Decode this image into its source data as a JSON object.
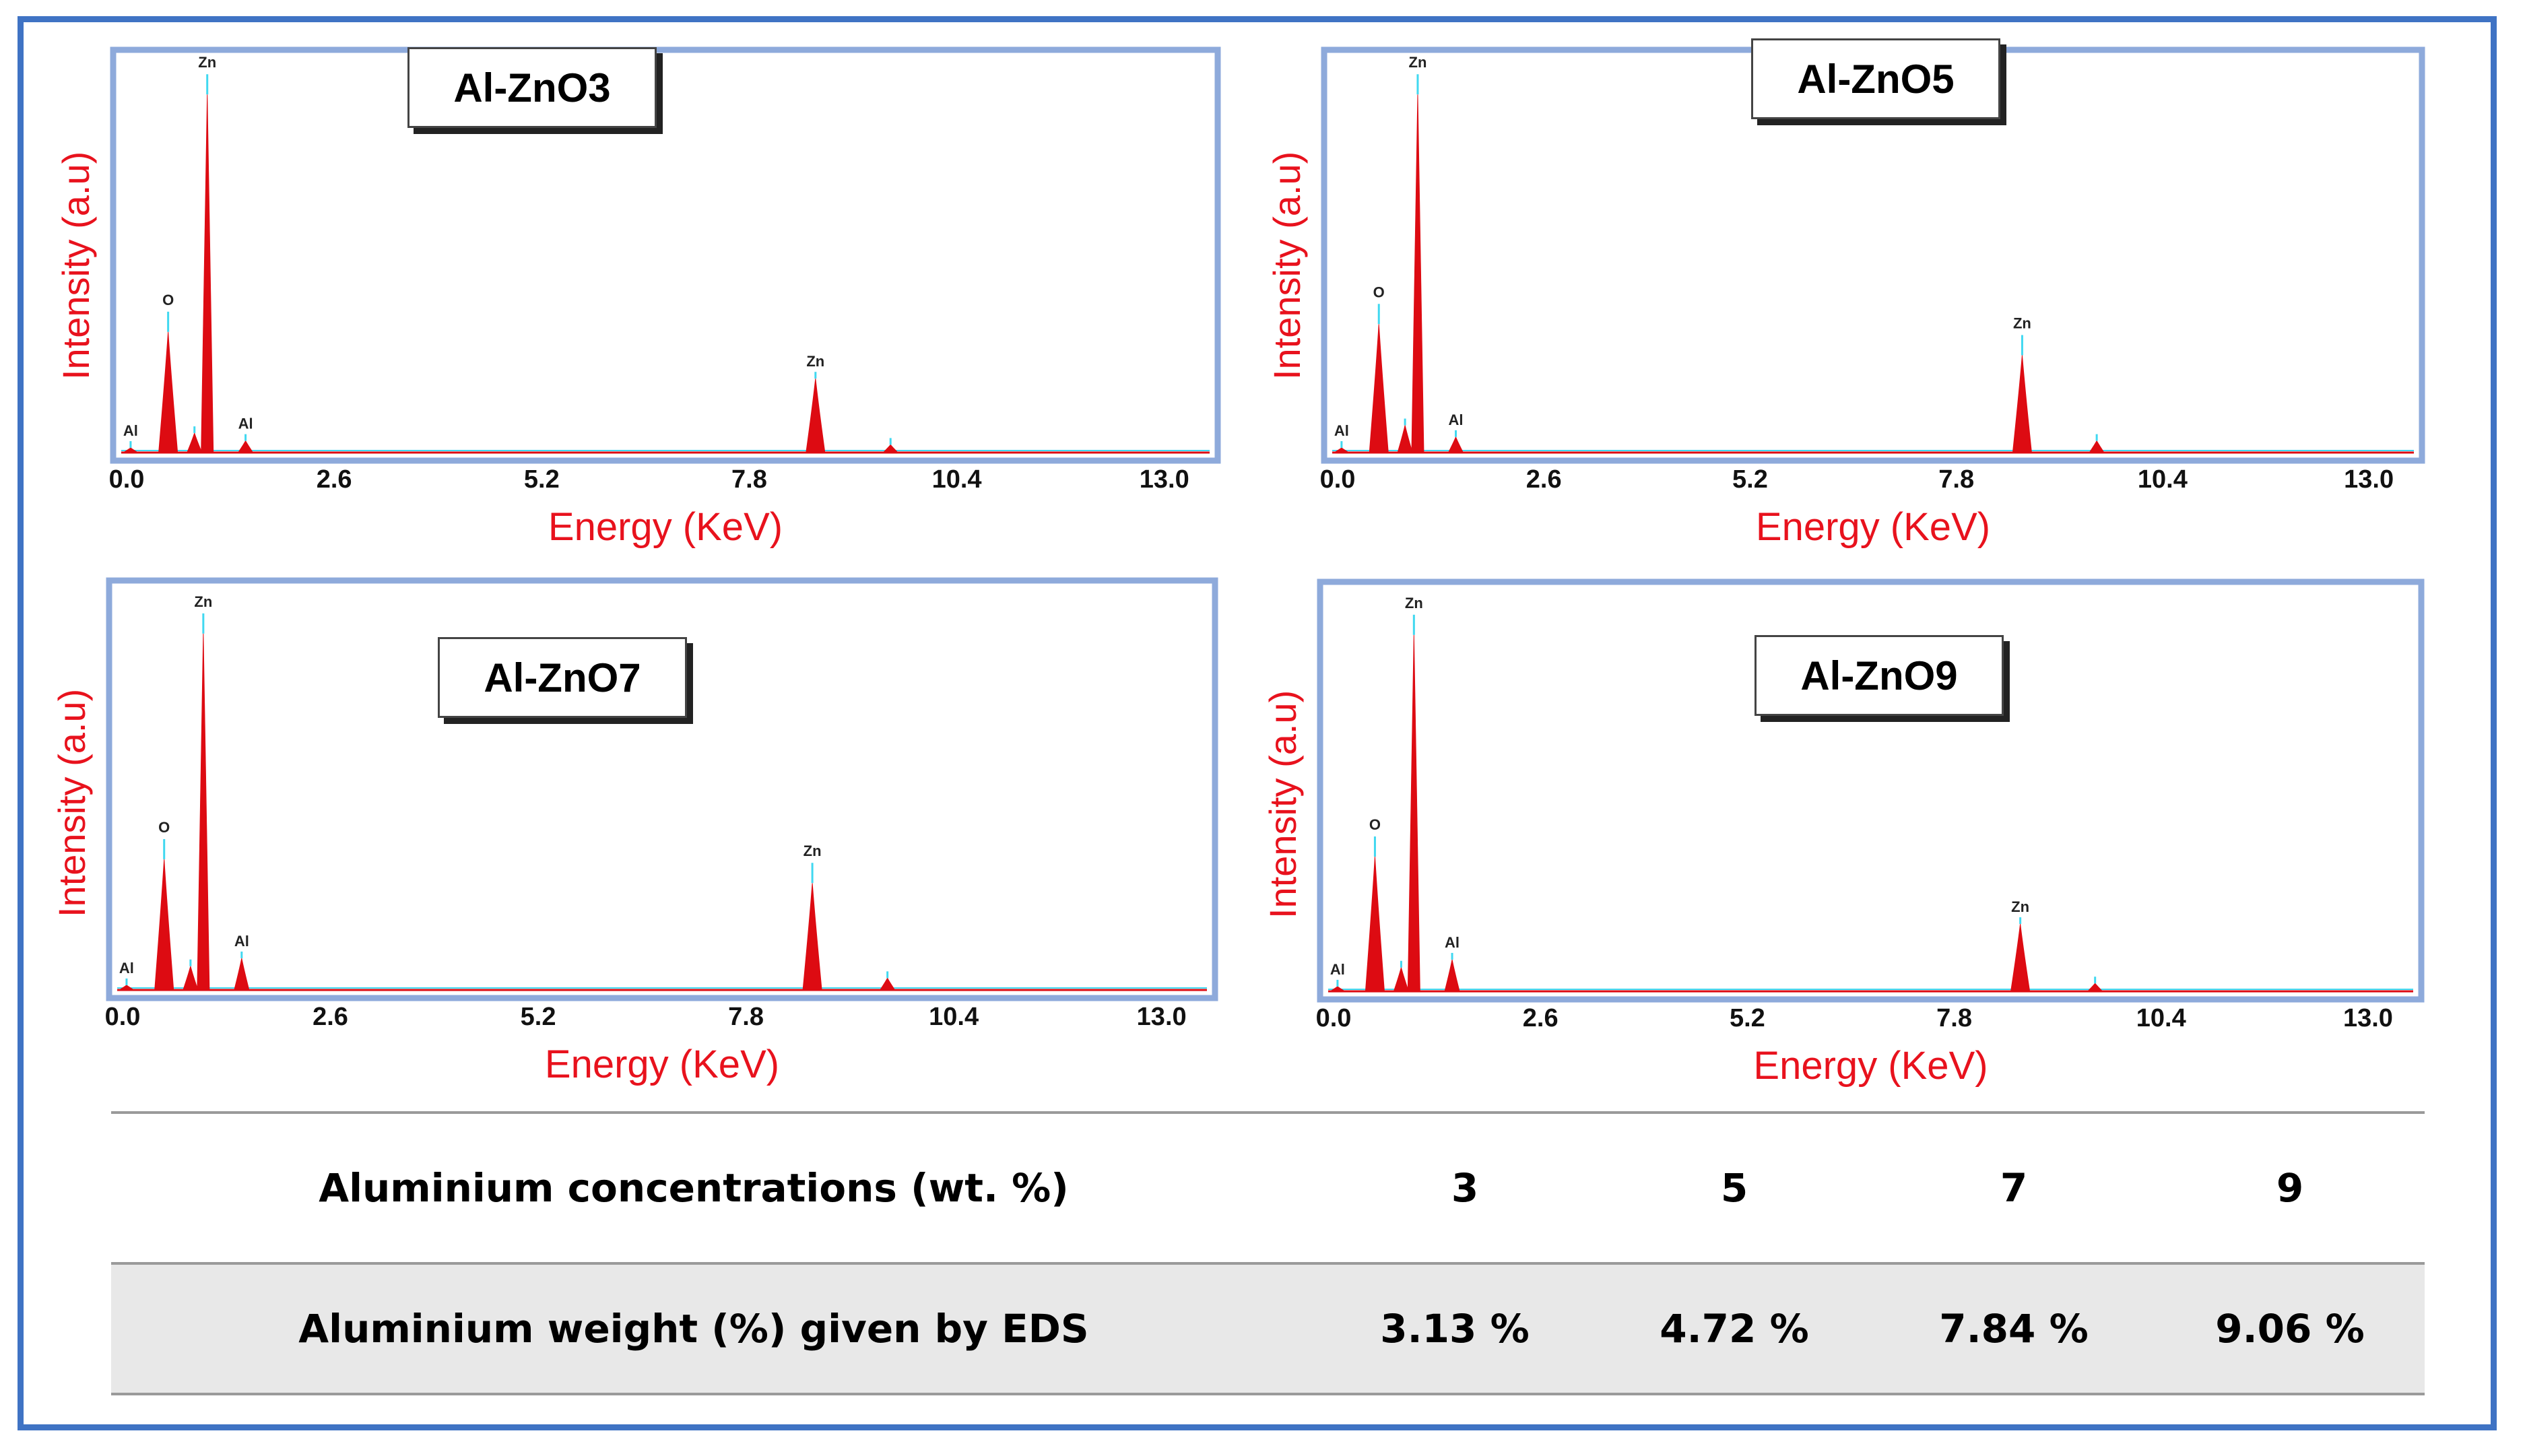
{
  "chart_data": [
    {
      "type": "line",
      "title": "Al-ZnO3",
      "xlabel": "Energy (KeV)",
      "ylabel": "Intensity (a.u)",
      "xlim": [
        0,
        13.5
      ],
      "ylim": [
        0,
        100
      ],
      "x_ticks": [
        "0.0",
        "2.6",
        "5.2",
        "7.8",
        "10.4",
        "13.0"
      ],
      "peaks": [
        {
          "label": "Al",
          "x": 0.05,
          "height": 0
        },
        {
          "label": "O",
          "x": 0.52,
          "height": 31
        },
        {
          "label": "",
          "x": 0.85,
          "height": 5
        },
        {
          "label": "Zn",
          "x": 1.01,
          "height": 92
        },
        {
          "label": "Al",
          "x": 1.49,
          "height": 3
        },
        {
          "label": "Zn",
          "x": 8.63,
          "height": 19
        },
        {
          "label": "",
          "x": 9.57,
          "height": 2
        }
      ]
    },
    {
      "type": "line",
      "title": "Al-ZnO5",
      "xlabel": "Energy (KeV)",
      "ylabel": "Intensity (a.u)",
      "xlim": [
        0,
        13.5
      ],
      "ylim": [
        0,
        100
      ],
      "x_ticks": [
        "0.0",
        "2.6",
        "5.2",
        "7.8",
        "10.4",
        "13.0"
      ],
      "peaks": [
        {
          "label": "Al",
          "x": 0.05,
          "height": 0
        },
        {
          "label": "O",
          "x": 0.52,
          "height": 33
        },
        {
          "label": "",
          "x": 0.85,
          "height": 7
        },
        {
          "label": "Zn",
          "x": 1.01,
          "height": 92
        },
        {
          "label": "Al",
          "x": 1.49,
          "height": 4
        },
        {
          "label": "Zn",
          "x": 8.63,
          "height": 25
        },
        {
          "label": "",
          "x": 9.57,
          "height": 3
        }
      ]
    },
    {
      "type": "line",
      "title": "Al-ZnO7",
      "xlabel": "Energy (KeV)",
      "ylabel": "Intensity (a.u)",
      "xlim": [
        0,
        13.5
      ],
      "ylim": [
        0,
        100
      ],
      "x_ticks": [
        "0.0",
        "2.6",
        "5.2",
        "7.8",
        "10.4",
        "13.0"
      ],
      "peaks": [
        {
          "label": "Al",
          "x": 0.05,
          "height": 0
        },
        {
          "label": "O",
          "x": 0.52,
          "height": 33
        },
        {
          "label": "",
          "x": 0.85,
          "height": 6
        },
        {
          "label": "Zn",
          "x": 1.01,
          "height": 90
        },
        {
          "label": "Al",
          "x": 1.49,
          "height": 8
        },
        {
          "label": "Zn",
          "x": 8.63,
          "height": 27
        },
        {
          "label": "",
          "x": 9.57,
          "height": 3
        }
      ]
    },
    {
      "type": "line",
      "title": "Al-ZnO9",
      "xlabel": "Energy (KeV)",
      "ylabel": "Intensity (a.u)",
      "xlim": [
        0,
        13.5
      ],
      "ylim": [
        0,
        100
      ],
      "x_ticks": [
        "0.0",
        "2.6",
        "5.2",
        "7.8",
        "10.4",
        "13.0"
      ],
      "peaks": [
        {
          "label": "Al",
          "x": 0.05,
          "height": 0
        },
        {
          "label": "O",
          "x": 0.52,
          "height": 34
        },
        {
          "label": "",
          "x": 0.85,
          "height": 6
        },
        {
          "label": "Zn",
          "x": 1.01,
          "height": 90
        },
        {
          "label": "Al",
          "x": 1.49,
          "height": 8
        },
        {
          "label": "Zn",
          "x": 8.63,
          "height": 17
        },
        {
          "label": "",
          "x": 9.57,
          "height": 2
        }
      ]
    }
  ],
  "table": {
    "row1": {
      "header": "Aluminium concentrations  (wt. %)",
      "values": [
        "3",
        "5",
        "7",
        "9"
      ]
    },
    "row2": {
      "header": "Aluminium weight (%) given by EDS",
      "values": [
        "3.13 %",
        "4.72 %",
        "7.84 %",
        "9.06 %"
      ]
    }
  },
  "colors": {
    "frame": "#3f73c4",
    "plot_border": "#8eaadb",
    "peak_fill": "#dd0b12",
    "axis_label": "#e8121d",
    "peak_cap": "#40d8f0"
  }
}
